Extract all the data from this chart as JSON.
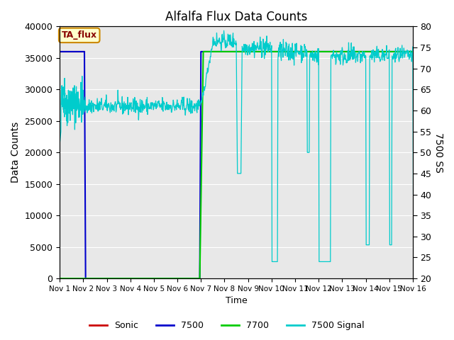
{
  "title": "Alfalfa Flux Data Counts",
  "xlabel": "Time",
  "ylabel_left": "Data Counts",
  "ylabel_right": "7500 SS",
  "ylim_left": [
    0,
    40000
  ],
  "ylim_right": [
    20,
    80
  ],
  "xlim": [
    0,
    15
  ],
  "xtick_positions": [
    0,
    1,
    2,
    3,
    4,
    5,
    6,
    7,
    8,
    9,
    10,
    11,
    12,
    13,
    14,
    15
  ],
  "xtick_labels": [
    "Nov 1",
    "Nov 2",
    "Nov 3",
    "Nov 4",
    "Nov 5",
    "Nov 6",
    "Nov 7",
    "Nov 8",
    "Nov 9",
    "Nov 10",
    "Nov 11",
    "Nov 12",
    "Nov 13",
    "Nov 14",
    "Nov 15",
    "Nov 16"
  ],
  "annotation_text": "TA_flux",
  "annotation_bg": "#ffffcc",
  "annotation_edge": "#cc8800",
  "annotation_textcolor": "#880000",
  "plot_bg_color": "#e8e8e8",
  "fig_bg_color": "#ffffff",
  "grid_color": "#ffffff",
  "sonic_color": "#cc0000",
  "blue_color": "#0000cc",
  "green_color": "#00cc00",
  "cyan_color": "#00cccc",
  "legend_entries": [
    "Sonic",
    "7500",
    "7700",
    "7500 Signal"
  ]
}
